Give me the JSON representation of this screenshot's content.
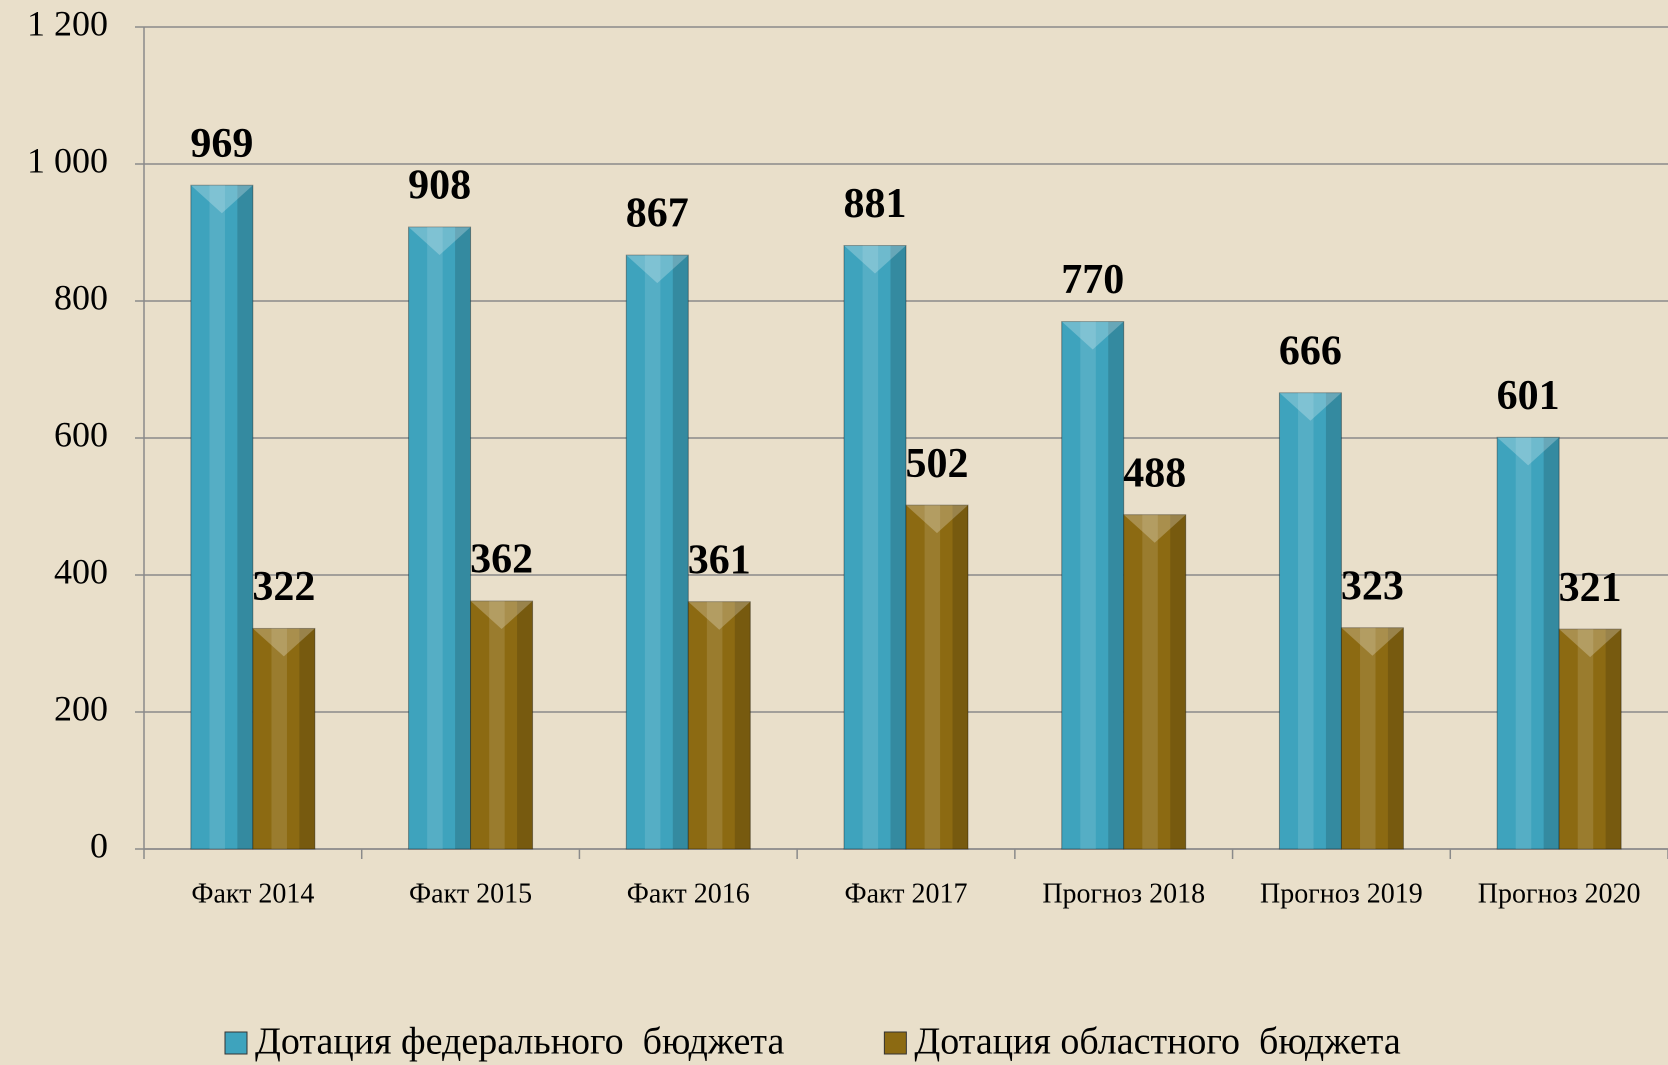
{
  "chart_data": {
    "type": "bar",
    "categories": [
      "Факт 2014",
      "Факт 2015",
      "Факт 2016",
      "Факт 2017",
      "Прогноз 2018",
      "Прогноз 2019",
      "Прогноз 2020"
    ],
    "series": [
      {
        "name": "Дотация федерального  бюджета",
        "color": "#3ea3bd",
        "values": [
          969,
          908,
          867,
          881,
          770,
          666,
          601
        ]
      },
      {
        "name": "Дотация областного  бюджета",
        "color": "#8c6a12",
        "values": [
          322,
          362,
          361,
          502,
          488,
          323,
          321
        ]
      }
    ],
    "ylim": [
      0,
      1200
    ],
    "yticks": [
      0,
      200,
      400,
      600,
      800,
      {
        "value": 1000,
        "label": "1 000"
      },
      {
        "value": 1200,
        "label": "1 200"
      }
    ],
    "grid": true,
    "legend": "bottom"
  }
}
